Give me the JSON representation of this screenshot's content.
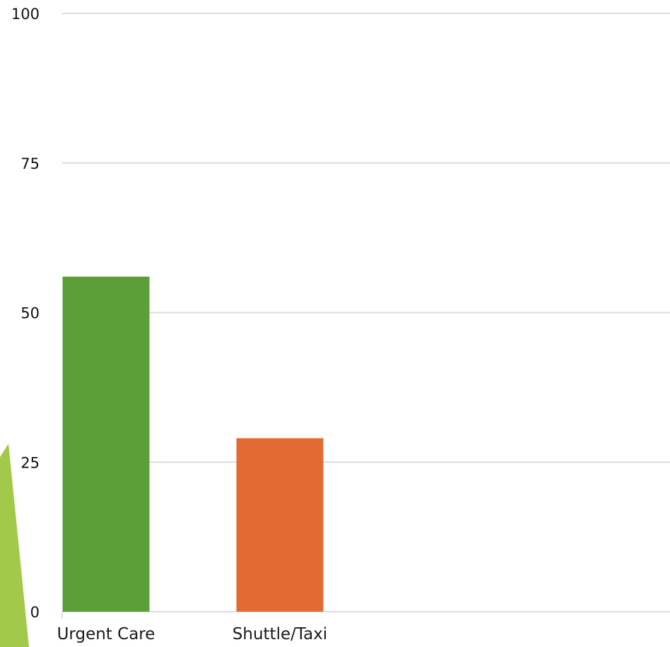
{
  "chart_data": {
    "type": "bar",
    "title": "",
    "xlabel": "",
    "ylabel": "",
    "categories": [
      "Urgent Care",
      "Shuttle/Taxi"
    ],
    "values": [
      56,
      29
    ],
    "bar_colors": [
      "#5c9e37",
      "#e26b33"
    ],
    "ylim": [
      0,
      100
    ],
    "yticks": [
      0,
      25,
      50,
      75,
      100
    ],
    "ytick_labels": [
      "0",
      "25",
      "50",
      "75",
      "100"
    ],
    "grid": true,
    "grid_color": "#d9dee0",
    "legend": "none",
    "decoration_color": "#a2c94a"
  }
}
